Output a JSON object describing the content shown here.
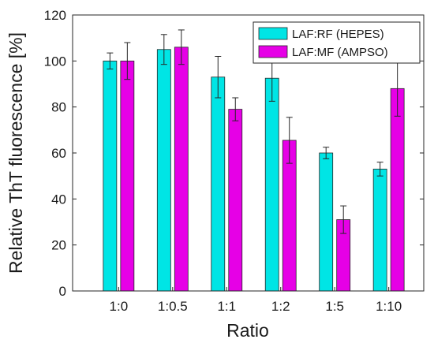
{
  "chart_data": {
    "type": "bar",
    "title": "",
    "xlabel": "Ratio",
    "ylabel": "Relative ThT fluorescence [%]",
    "ylim": [
      0,
      120
    ],
    "yticks": [
      0,
      20,
      40,
      60,
      80,
      100,
      120
    ],
    "categories": [
      "1:0",
      "1:0.5",
      "1:1",
      "1:2",
      "1:5",
      "1:10"
    ],
    "series": [
      {
        "name": "LAF:RF (HEPES)",
        "color": "#00e5e5",
        "values": [
          100,
          105,
          93,
          92.5,
          60,
          53
        ],
        "errors": [
          3.5,
          6.5,
          9,
          10,
          2.5,
          3
        ]
      },
      {
        "name": "LAF:MF (AMPSO)",
        "color": "#e600e6",
        "values": [
          100,
          106,
          79,
          65.5,
          31,
          88
        ],
        "errors": [
          8,
          7.5,
          5,
          10,
          6,
          12
        ]
      }
    ],
    "legend_position": "top-right",
    "grid": false
  }
}
